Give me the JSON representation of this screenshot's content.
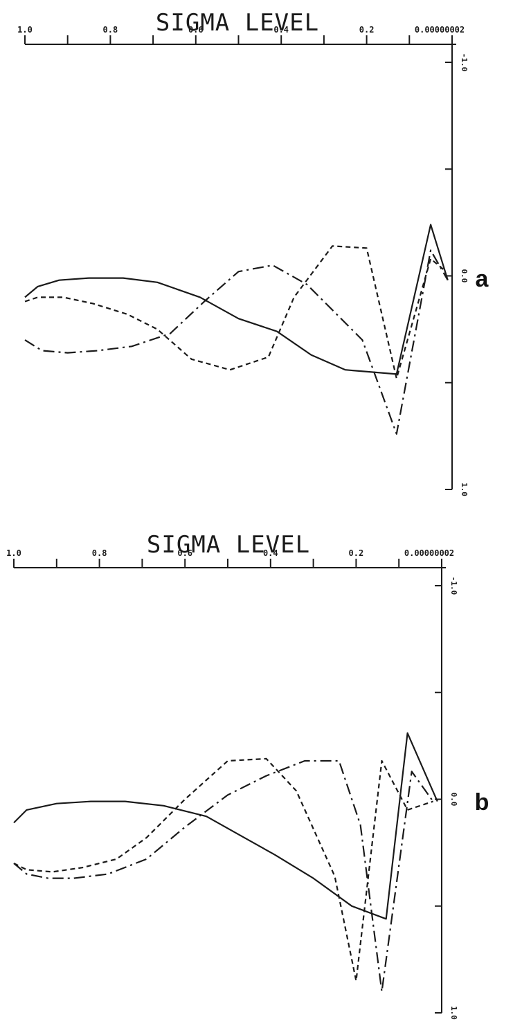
{
  "chart_data": [
    {
      "type": "line",
      "panel_label": "a",
      "title": "SIGMA LEVEL",
      "x_tick_labels": [
        "1.0",
        "0.8",
        "0.6",
        "0.4",
        "0.2",
        "0.00000002"
      ],
      "x_tick_values": [
        1.0,
        0.8,
        0.6,
        0.4,
        0.2,
        0.0
      ],
      "xlim": [
        1.0,
        0.0
      ],
      "y_tick_labels": [
        "-1.0",
        "0.0",
        "1.0"
      ],
      "y_tick_values": [
        -1.0,
        0.0,
        1.0
      ],
      "ylim": [
        -1.0,
        1.0
      ],
      "y_inverted": true,
      "x_axis_position": "top",
      "y_axis_position": "right",
      "grid": false,
      "series": [
        {
          "style": "solid",
          "x": [
            1.0,
            0.97,
            0.92,
            0.85,
            0.77,
            0.69,
            0.59,
            0.5,
            0.41,
            0.33,
            0.25,
            0.13,
            0.05,
            0.01
          ],
          "y": [
            0.1,
            0.05,
            0.02,
            0.01,
            0.01,
            0.03,
            0.1,
            0.2,
            0.26,
            0.37,
            0.44,
            0.46,
            -0.24,
            0.02
          ]
        },
        {
          "style": "long-dash",
          "x": [
            1.0,
            0.96,
            0.9,
            0.83,
            0.75,
            0.66,
            0.58,
            0.5,
            0.42,
            0.34,
            0.27,
            0.21,
            0.13,
            0.05,
            0.01
          ],
          "y": [
            0.3,
            0.35,
            0.36,
            0.35,
            0.33,
            0.27,
            0.12,
            -0.02,
            -0.05,
            0.04,
            0.18,
            0.3,
            0.74,
            -0.12,
            0.02
          ]
        },
        {
          "style": "short-dash",
          "x": [
            1.0,
            0.97,
            0.91,
            0.84,
            0.76,
            0.69,
            0.61,
            0.52,
            0.43,
            0.37,
            0.28,
            0.2,
            0.13,
            0.05,
            0.02
          ],
          "y": [
            0.12,
            0.1,
            0.1,
            0.13,
            0.18,
            0.25,
            0.39,
            0.44,
            0.38,
            0.1,
            -0.14,
            -0.13,
            0.48,
            -0.08,
            -0.03
          ]
        }
      ]
    },
    {
      "type": "line",
      "panel_label": "b",
      "title": "SIGMA LEVEL",
      "x_tick_labels": [
        "1.0",
        "0.8",
        "0.6",
        "0.4",
        "0.2",
        "0.00000002"
      ],
      "x_tick_values": [
        1.0,
        0.8,
        0.6,
        0.4,
        0.2,
        0.0
      ],
      "xlim": [
        1.0,
        0.0
      ],
      "y_tick_labels": [
        "-1.0",
        "0.0",
        "1.0"
      ],
      "y_tick_values": [
        -1.0,
        0.0,
        1.0
      ],
      "ylim": [
        -1.0,
        1.0
      ],
      "y_inverted": true,
      "x_axis_position": "top",
      "y_axis_position": "right",
      "grid": false,
      "series": [
        {
          "style": "solid",
          "x": [
            1.0,
            0.97,
            0.9,
            0.82,
            0.74,
            0.65,
            0.55,
            0.47,
            0.39,
            0.3,
            0.21,
            0.13,
            0.08,
            0.01
          ],
          "y": [
            0.11,
            0.05,
            0.02,
            0.01,
            0.01,
            0.03,
            0.08,
            0.17,
            0.26,
            0.37,
            0.5,
            0.56,
            -0.31,
            0.01
          ]
        },
        {
          "style": "long-dash",
          "x": [
            1.0,
            0.97,
            0.92,
            0.86,
            0.78,
            0.69,
            0.6,
            0.5,
            0.41,
            0.32,
            0.24,
            0.19,
            0.14,
            0.07,
            0.02
          ],
          "y": [
            0.3,
            0.35,
            0.37,
            0.37,
            0.35,
            0.28,
            0.13,
            -0.02,
            -0.11,
            -0.18,
            -0.18,
            0.12,
            0.9,
            -0.13,
            0.01
          ]
        },
        {
          "style": "short-dash",
          "x": [
            1.0,
            0.97,
            0.91,
            0.84,
            0.76,
            0.69,
            0.6,
            0.5,
            0.41,
            0.34,
            0.25,
            0.2,
            0.14,
            0.08,
            0.02
          ],
          "y": [
            0.3,
            0.33,
            0.34,
            0.32,
            0.28,
            0.18,
            0.0,
            -0.18,
            -0.19,
            -0.04,
            0.36,
            0.85,
            -0.18,
            0.05,
            0.01
          ]
        }
      ]
    }
  ]
}
